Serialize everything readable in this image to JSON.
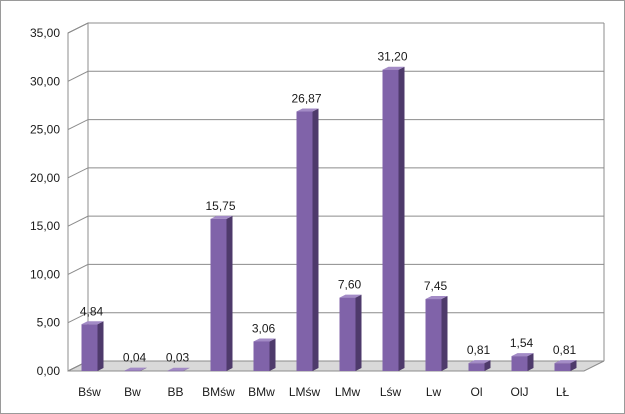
{
  "chart_data": {
    "type": "bar",
    "style": "3d-column",
    "categories": [
      "Bśw",
      "Bw",
      "BB",
      "BMśw",
      "BMw",
      "LMśw",
      "LMw",
      "Lśw",
      "Lw",
      "Ol",
      "OlJ",
      "LŁ"
    ],
    "values": [
      4.84,
      0.04,
      0.03,
      15.75,
      3.06,
      26.87,
      7.6,
      31.2,
      7.45,
      0.81,
      1.54,
      0.81
    ],
    "data_labels": [
      "4,84",
      "0,04",
      "0,03",
      "15,75",
      "3,06",
      "26,87",
      "7,60",
      "31,20",
      "7,45",
      "0,81",
      "1,54",
      "0,81"
    ],
    "y_ticks": [
      0,
      5,
      10,
      15,
      20,
      25,
      30,
      35
    ],
    "y_tick_labels": [
      "0,00",
      "5,00",
      "10,00",
      "15,00",
      "20,00",
      "25,00",
      "30,00",
      "35,00"
    ],
    "ylim": [
      0,
      35
    ],
    "grid": true,
    "legend": "none",
    "colors": {
      "bar_front": "#8063a9",
      "bar_side": "#4e3a6b",
      "bar_top": "#a38bc6",
      "grid": "#8c8c8c",
      "floor": "#d9d9d9"
    }
  }
}
